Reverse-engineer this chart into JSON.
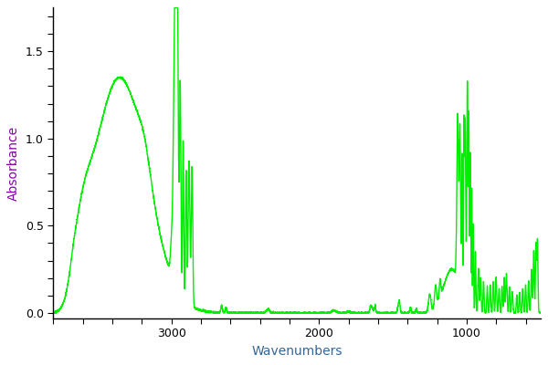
{
  "xlabel": "Wavenumbers",
  "ylabel": "Absorbance",
  "line_color": "#00EE00",
  "line_width": 1.0,
  "xlim": [
    3800,
    500
  ],
  "ylim": [
    -0.03,
    1.75
  ],
  "yticks": [
    0.0,
    0.5,
    1.0,
    1.5
  ],
  "xticks": [
    3000,
    2000,
    1000
  ],
  "background_color": "#ffffff",
  "ylabel_color": "#8800AA",
  "xlabel_color": "#336699",
  "tick_label_color": "#000000"
}
